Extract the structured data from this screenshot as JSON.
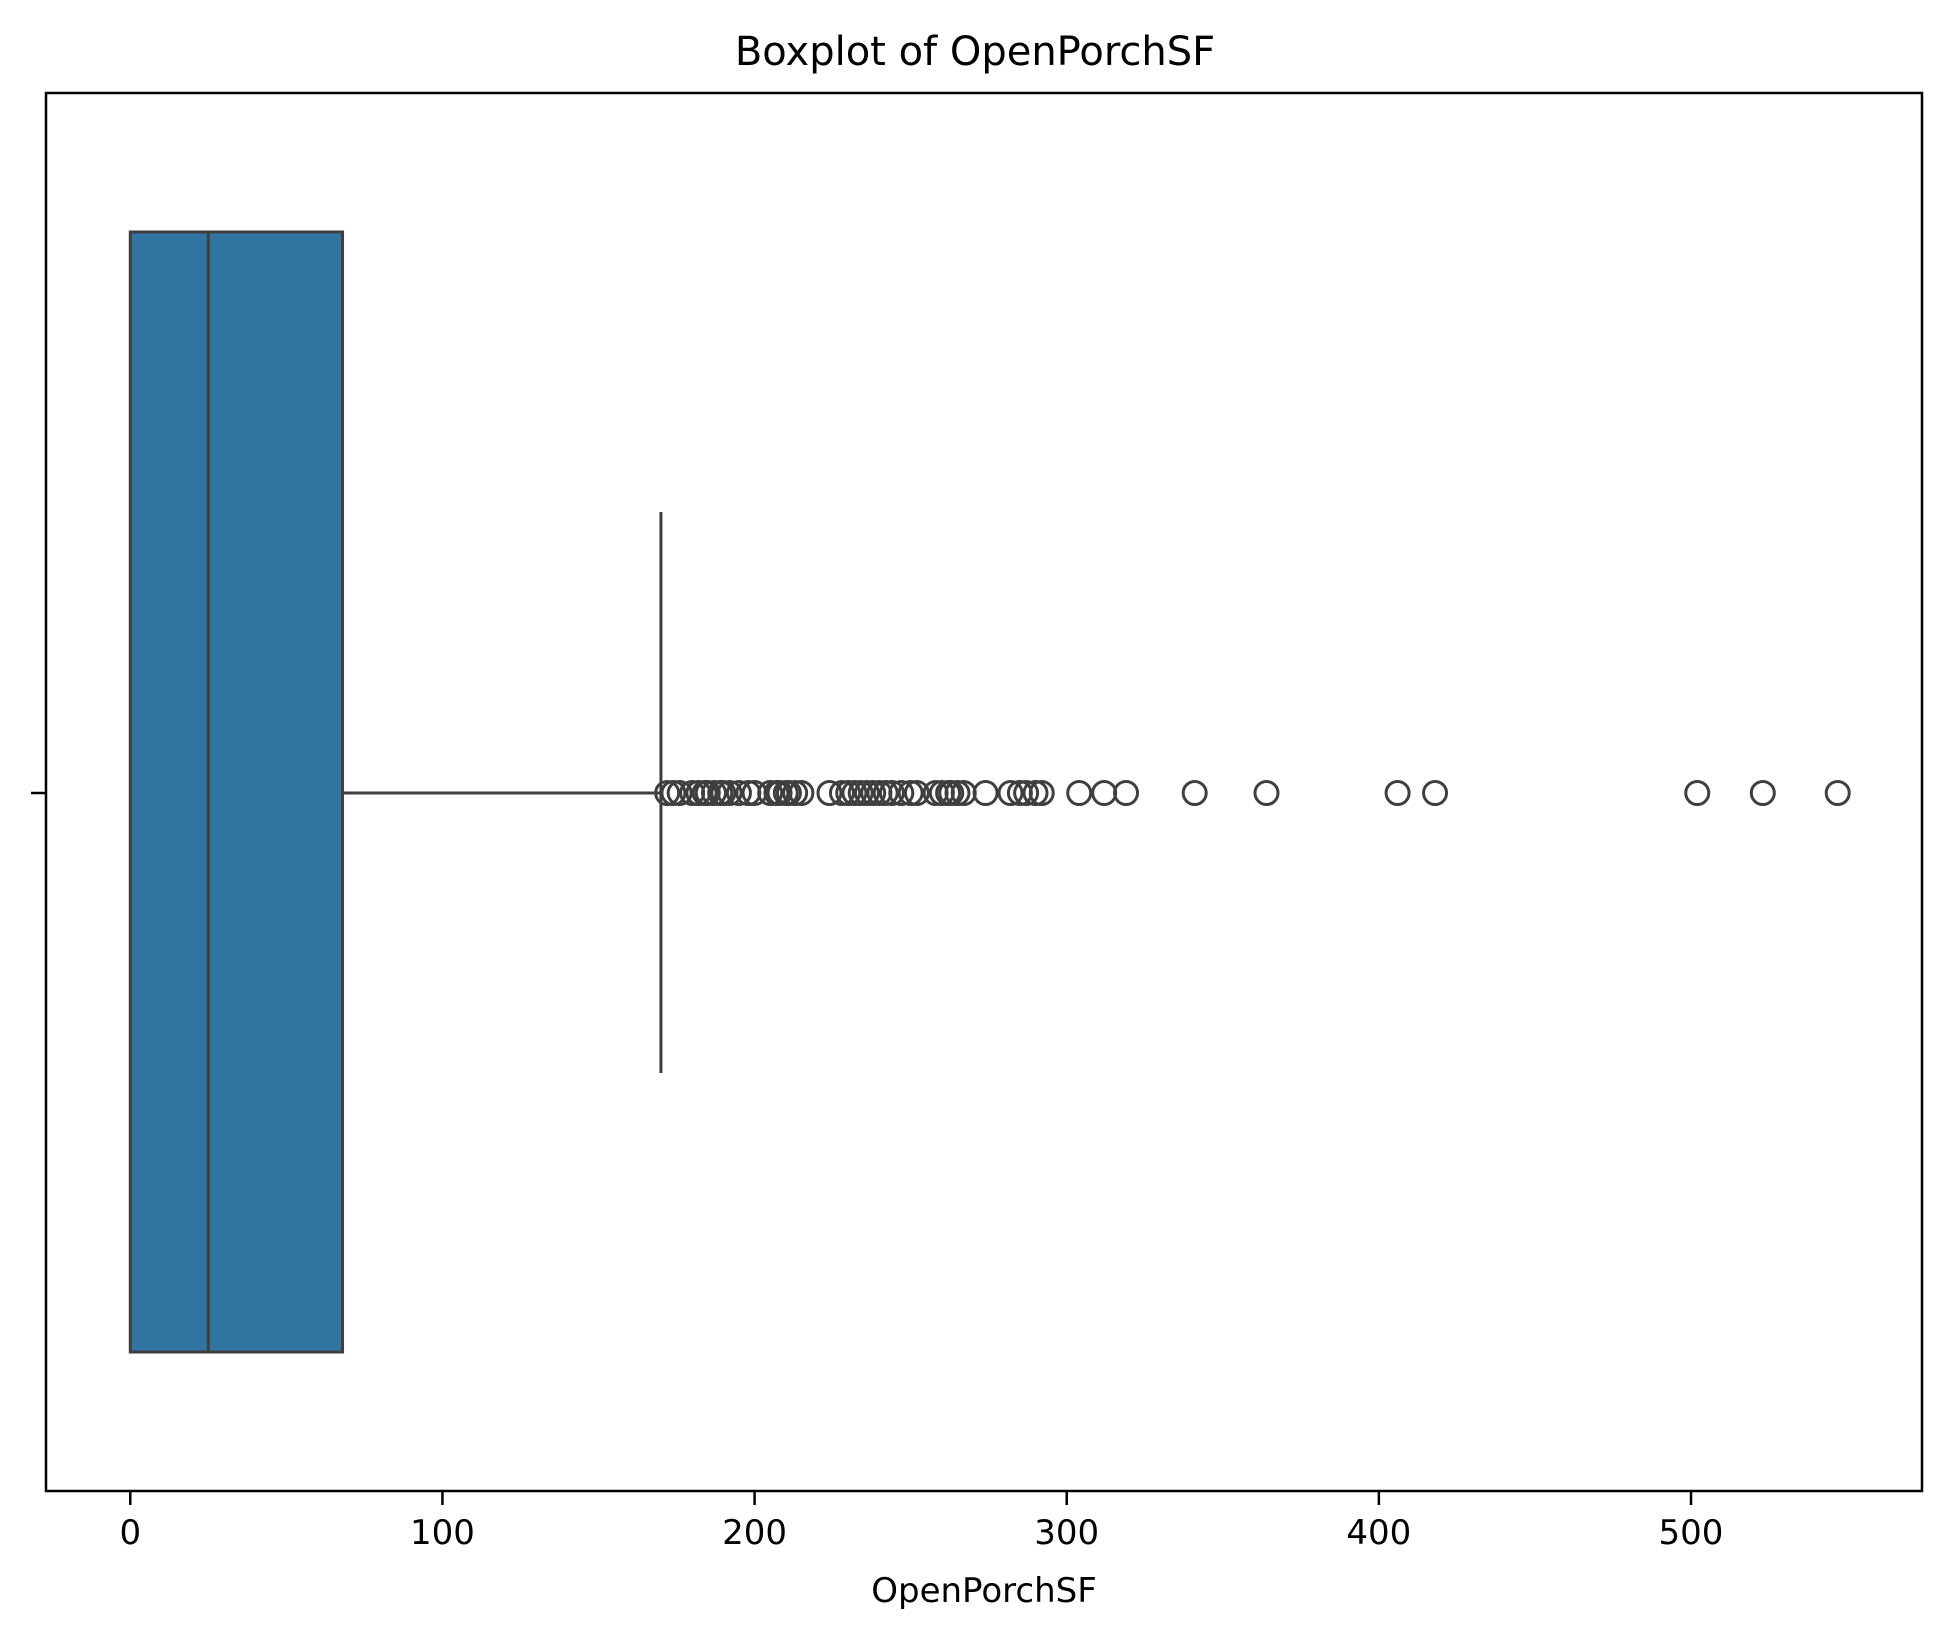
{
  "chart_data": {
    "type": "boxplot",
    "title": "Boxplot of OpenPorchSF",
    "xlabel": "OpenPorchSF",
    "ylabel": "",
    "xlim": [
      -27,
      574
    ],
    "x_ticks": [
      0,
      100,
      200,
      300,
      400,
      500
    ],
    "x_tick_labels": [
      "0",
      "100",
      "200",
      "300",
      "400",
      "500"
    ],
    "orientation": "horizontal",
    "grid": false,
    "box": {
      "min": 0,
      "q1": 0,
      "median": 25,
      "q3": 68,
      "whisker_low": 0,
      "whisker_high": 170
    },
    "outliers": [
      172,
      174,
      176,
      180,
      182,
      184,
      185,
      187,
      189,
      190,
      192,
      195,
      198,
      200,
      205,
      207,
      208,
      210,
      211,
      213,
      215,
      224,
      228,
      230,
      232,
      234,
      236,
      238,
      240,
      242,
      244,
      247,
      250,
      252,
      258,
      260,
      262,
      263,
      265,
      267,
      274,
      282,
      285,
      287,
      290,
      292,
      304,
      312,
      319,
      341,
      364,
      406,
      418,
      502,
      523,
      547
    ],
    "colors": {
      "box_fill": "#3274a1",
      "line": "#3f3f3f",
      "axes": "#000000"
    }
  }
}
